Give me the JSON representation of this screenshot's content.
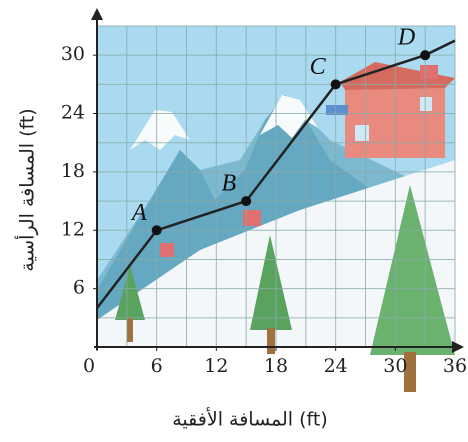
{
  "chart_data": {
    "type": "line",
    "x_label": "المسافة الأفقية (ft)",
    "y_label": "المسافة الرأسية (ft)",
    "x": [
      0,
      6,
      15,
      24,
      33,
      36
    ],
    "series": [
      {
        "color": "#222222",
        "values": [
          4,
          12,
          15,
          27,
          30,
          31.5
        ]
      }
    ],
    "annotations": [
      {
        "text": "A",
        "x": 6,
        "y": 12
      },
      {
        "text": "B",
        "x": 15,
        "y": 15
      },
      {
        "text": "C",
        "x": 24,
        "y": 27
      },
      {
        "text": "D",
        "x": 33,
        "y": 30
      }
    ],
    "xlim": [
      0,
      36
    ],
    "ylim": [
      0,
      33
    ],
    "xticks": [
      0,
      6,
      12,
      18,
      24,
      30,
      36
    ],
    "yticks": [
      6,
      12,
      18,
      24,
      30
    ],
    "xgrid": [
      3,
      6,
      9,
      12,
      15,
      18,
      21,
      24,
      27,
      30,
      33,
      36
    ],
    "ygrid": [
      3,
      6,
      9,
      12,
      15,
      18,
      21,
      24,
      27,
      30,
      33
    ],
    "grid": true
  }
}
